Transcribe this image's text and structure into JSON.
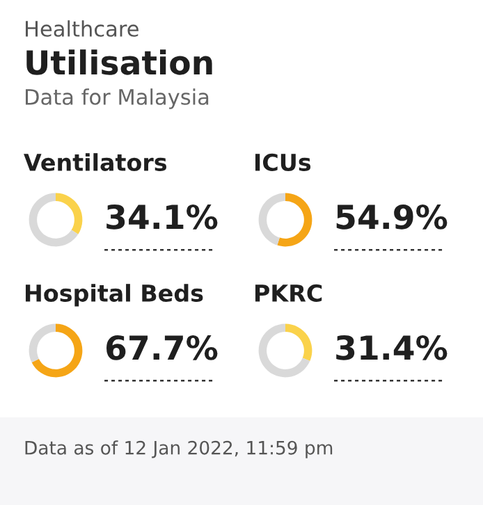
{
  "chart_data": [
    {
      "type": "other",
      "annotations": [
        "Healthcare",
        "Utilisation",
        "Data for Malaysia",
        "Data as of 12 Jan 2022, 11:59 pm"
      ]
    },
    {
      "type": "donut",
      "title": "Ventilators",
      "categories": [
        null,
        null
      ],
      "values": [
        34.1,
        65.9
      ],
      "colors": [
        "#fad24b",
        "#d9d9d9"
      ],
      "value_labels": [
        "34.1%",
        null
      ]
    },
    {
      "type": "donut",
      "title": "ICUs",
      "categories": [
        null,
        null
      ],
      "values": [
        54.9,
        45.1
      ],
      "colors": [
        "#f5a516",
        "#d9d9d9"
      ],
      "value_labels": [
        "54.9%",
        null
      ]
    },
    {
      "type": "donut",
      "title": "Hospital Beds",
      "categories": [
        null,
        null
      ],
      "values": [
        67.7,
        32.3
      ],
      "colors": [
        "#f5a516",
        "#d9d9d9"
      ],
      "value_labels": [
        "67.7%",
        null
      ]
    },
    {
      "type": "donut",
      "title": "PKRC",
      "categories": [
        null,
        null
      ],
      "values": [
        31.4,
        68.6
      ],
      "colors": [
        "#fad24b",
        "#d9d9d9"
      ],
      "value_labels": [
        "31.4%",
        null
      ]
    }
  ]
}
